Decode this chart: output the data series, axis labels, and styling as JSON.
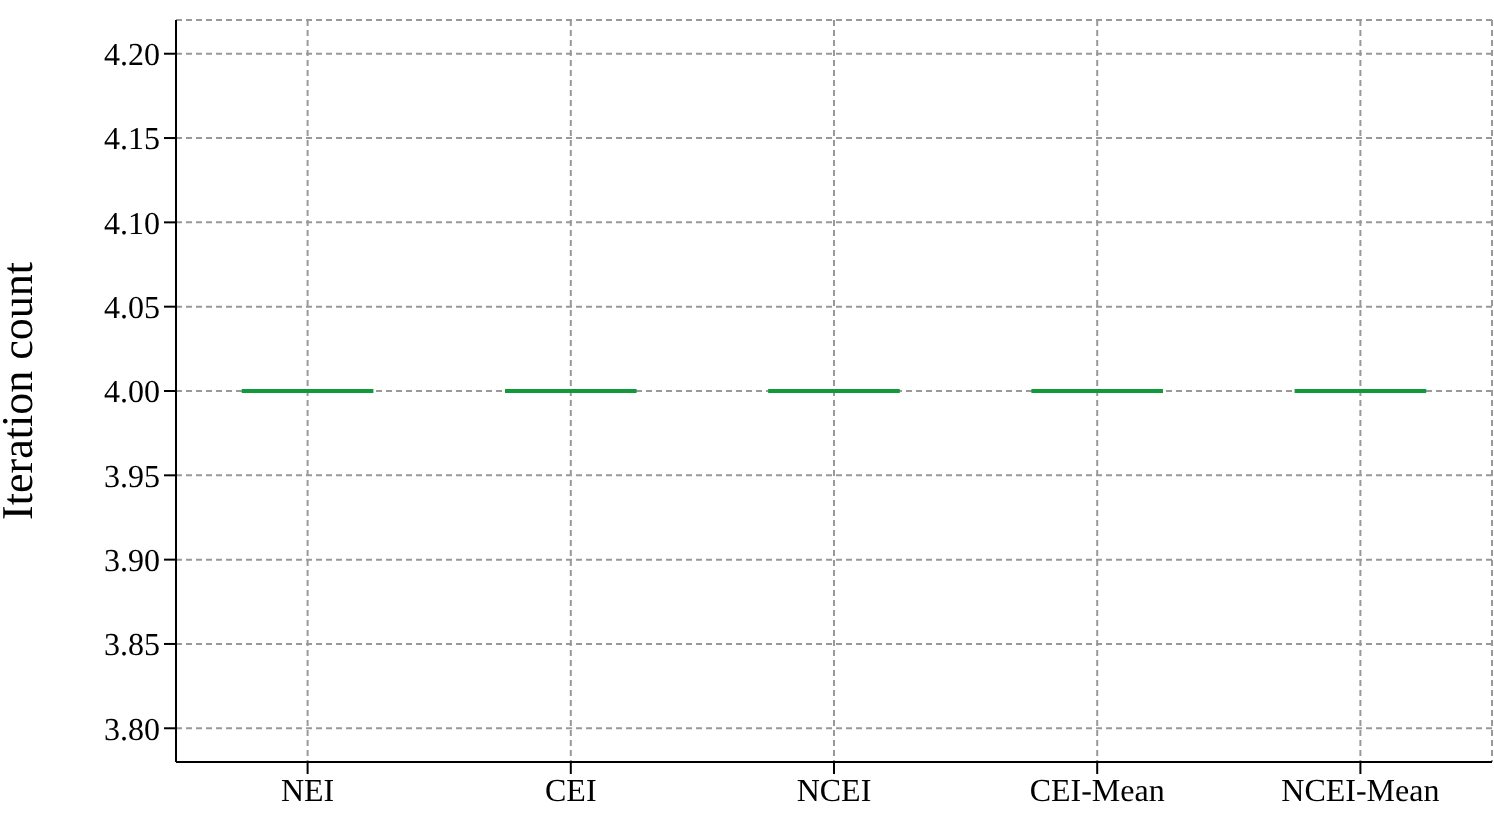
{
  "chart_data": {
    "type": "box",
    "ylabel": "Iteration count",
    "categories": [
      "NEI",
      "CEI",
      "NCEI",
      "CEI-Mean",
      "NCEI-Mean"
    ],
    "boxes": [
      {
        "low": 4,
        "q1": 4,
        "median": 4,
        "q3": 4,
        "high": 4
      },
      {
        "low": 4,
        "q1": 4,
        "median": 4,
        "q3": 4,
        "high": 4
      },
      {
        "low": 4,
        "q1": 4,
        "median": 4,
        "q3": 4,
        "high": 4
      },
      {
        "low": 4,
        "q1": 4,
        "median": 4,
        "q3": 4,
        "high": 4
      },
      {
        "low": 4,
        "q1": 4,
        "median": 4,
        "q3": 4,
        "high": 4
      }
    ],
    "color": "#109a3c",
    "ylim": [
      3.78,
      4.22
    ],
    "yticks": [
      {
        "value": 3.8,
        "label": "3.80"
      },
      3.85,
      {
        "value": 3.9,
        "label": "3.90"
      },
      3.95,
      {
        "value": 4,
        "label": "4.00"
      },
      4.05,
      {
        "value": 4.1,
        "label": "4.10"
      },
      4.15,
      {
        "value": 4.2,
        "label": "4.20"
      }
    ],
    "grid": true
  }
}
